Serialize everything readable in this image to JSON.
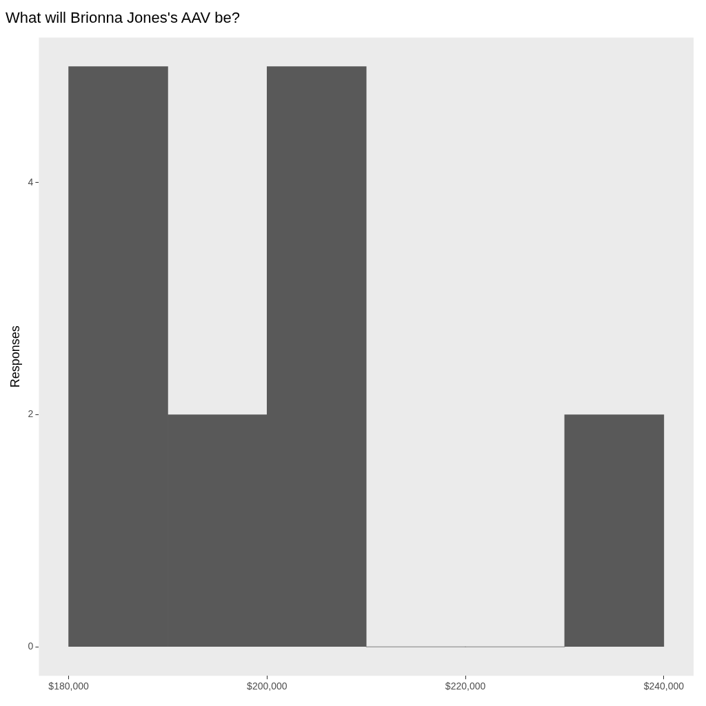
{
  "chart_data": {
    "type": "histogram",
    "title": "What will Brionna Jones's AAV be?",
    "ylabel": "Responses",
    "bins": [
      180000,
      190000,
      200000,
      210000,
      220000,
      230000,
      240000
    ],
    "values": [
      5,
      2,
      5,
      0,
      0,
      2
    ],
    "color": "#595959",
    "xlim": [
      177000,
      243000
    ],
    "xticks": [
      {
        "value": 180000,
        "label": "$180,000"
      },
      {
        "value": 200000,
        "label": "$200,000"
      },
      {
        "value": 220000,
        "label": "$220,000"
      },
      {
        "value": 240000,
        "label": "$240,000"
      }
    ],
    "ylim": [
      -0.25,
      5.25
    ],
    "yticks": [
      0,
      2,
      4
    ]
  }
}
